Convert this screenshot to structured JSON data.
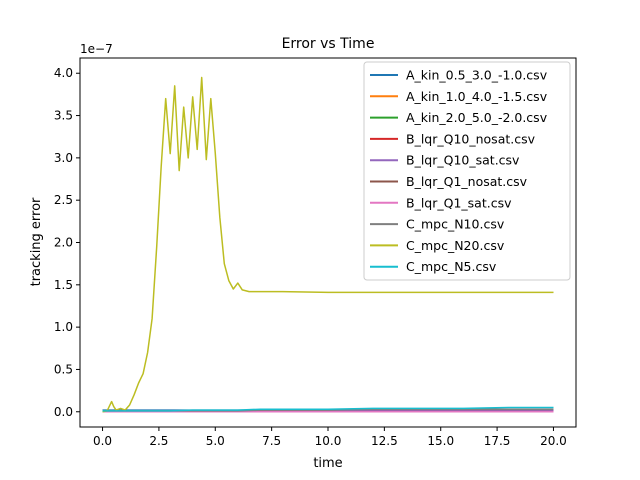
{
  "chart_data": {
    "type": "line",
    "title": "Error vs Time",
    "xlabel": "time",
    "ylabel": "tracking error",
    "y_scale_label": "1e−7",
    "xlim": [
      -1.0,
      21.0
    ],
    "ylim": [
      -0.18,
      4.18
    ],
    "x_ticks": [
      0.0,
      2.5,
      5.0,
      7.5,
      10.0,
      12.5,
      15.0,
      17.5,
      20.0
    ],
    "x_tick_labels": [
      "0.0",
      "2.5",
      "5.0",
      "7.5",
      "10.0",
      "12.5",
      "15.0",
      "17.5",
      "20.0"
    ],
    "y_ticks": [
      0.0,
      0.5,
      1.0,
      1.5,
      2.0,
      2.5,
      3.0,
      3.5,
      4.0
    ],
    "y_tick_labels": [
      "0.0",
      "0.5",
      "1.0",
      "1.5",
      "2.0",
      "2.5",
      "3.0",
      "3.5",
      "4.0"
    ],
    "grid": false,
    "legend_position": "top-right",
    "series": [
      {
        "name": "A_kin_0.5_3.0_-1.0.csv",
        "color": "#1f77b4",
        "x": [
          0,
          1,
          2,
          3,
          4,
          5,
          6,
          7,
          8,
          10,
          12,
          14,
          16,
          18,
          20
        ],
        "y": [
          0.02,
          0.02,
          0.02,
          0.02,
          0.02,
          0.02,
          0.02,
          0.02,
          0.02,
          0.02,
          0.02,
          0.02,
          0.02,
          0.02,
          0.02
        ]
      },
      {
        "name": "A_kin_1.0_4.0_-1.5.csv",
        "color": "#ff7f0e",
        "x": [
          0,
          1,
          2,
          3,
          4,
          5,
          6,
          7,
          8,
          10,
          12,
          14,
          16,
          18,
          20
        ],
        "y": [
          0.01,
          0.01,
          0.01,
          0.01,
          0.01,
          0.01,
          0.01,
          0.01,
          0.01,
          0.01,
          0.01,
          0.01,
          0.01,
          0.01,
          0.01
        ]
      },
      {
        "name": "A_kin_2.0_5.0_-2.0.csv",
        "color": "#2ca02c",
        "x": [
          0,
          1,
          2,
          3,
          4,
          5,
          6,
          7,
          8,
          10,
          12,
          14,
          16,
          18,
          20
        ],
        "y": [
          0.01,
          0.01,
          0.01,
          0.01,
          0.01,
          0.01,
          0.01,
          0.01,
          0.01,
          0.01,
          0.01,
          0.01,
          0.01,
          0.01,
          0.01
        ]
      },
      {
        "name": "B_lqr_Q10_nosat.csv",
        "color": "#d62728",
        "x": [
          0,
          1,
          2,
          3,
          4,
          5,
          6,
          7,
          8,
          10,
          12,
          14,
          16,
          18,
          20
        ],
        "y": [
          0.0,
          0.0,
          0.0,
          0.0,
          0.0,
          0.0,
          0.0,
          0.01,
          0.01,
          0.01,
          0.01,
          0.01,
          0.01,
          0.01,
          0.01
        ]
      },
      {
        "name": "B_lqr_Q10_sat.csv",
        "color": "#9467bd",
        "x": [
          0,
          1,
          2,
          3,
          4,
          5,
          6,
          7,
          8,
          10,
          12,
          14,
          16,
          18,
          20
        ],
        "y": [
          0.0,
          0.0,
          0.0,
          0.0,
          0.0,
          0.0,
          0.0,
          0.01,
          0.01,
          0.01,
          0.01,
          0.01,
          0.01,
          0.01,
          0.01
        ]
      },
      {
        "name": "B_lqr_Q1_nosat.csv",
        "color": "#8c564b",
        "x": [
          0,
          1,
          2,
          3,
          4,
          5,
          6,
          7,
          8,
          10,
          12,
          14,
          16,
          18,
          20
        ],
        "y": [
          0.0,
          0.0,
          0.0,
          0.0,
          0.0,
          0.0,
          0.0,
          0.0,
          0.0,
          0.0,
          0.0,
          0.0,
          0.0,
          0.0,
          0.0
        ]
      },
      {
        "name": "B_lqr_Q1_sat.csv",
        "color": "#e377c2",
        "x": [
          0,
          1,
          2,
          3,
          4,
          5,
          6,
          7,
          8,
          10,
          12,
          14,
          16,
          18,
          20
        ],
        "y": [
          0.0,
          0.0,
          0.0,
          0.0,
          0.0,
          0.0,
          0.0,
          0.0,
          0.0,
          0.0,
          0.0,
          0.0,
          0.0,
          0.0,
          0.0
        ]
      },
      {
        "name": "C_mpc_N10.csv",
        "color": "#7f7f7f",
        "x": [
          0,
          1,
          2,
          3,
          4,
          5,
          6,
          7,
          8,
          10,
          12,
          14,
          16,
          18,
          20
        ],
        "y": [
          0.01,
          0.01,
          0.01,
          0.01,
          0.01,
          0.01,
          0.01,
          0.02,
          0.02,
          0.02,
          0.03,
          0.03,
          0.03,
          0.03,
          0.03
        ]
      },
      {
        "name": "C_mpc_N20.csv",
        "color": "#bcbd22",
        "x": [
          0,
          0.2,
          0.4,
          0.5,
          0.6,
          0.8,
          1.0,
          1.2,
          1.4,
          1.6,
          1.8,
          2.0,
          2.2,
          2.4,
          2.6,
          2.8,
          3.0,
          3.2,
          3.4,
          3.6,
          3.8,
          4.0,
          4.2,
          4.4,
          4.6,
          4.8,
          5.0,
          5.2,
          5.4,
          5.6,
          5.8,
          6.0,
          6.2,
          6.5,
          7.0,
          8.0,
          10.0,
          12.0,
          14.0,
          16.0,
          18.0,
          20.0
        ],
        "y": [
          0.0,
          0.01,
          0.12,
          0.06,
          0.02,
          0.04,
          0.02,
          0.08,
          0.2,
          0.34,
          0.45,
          0.7,
          1.1,
          1.95,
          2.9,
          3.7,
          3.05,
          3.85,
          2.85,
          3.6,
          3.0,
          3.72,
          3.1,
          3.95,
          2.98,
          3.7,
          3.05,
          2.3,
          1.75,
          1.55,
          1.45,
          1.52,
          1.44,
          1.42,
          1.42,
          1.42,
          1.41,
          1.41,
          1.41,
          1.41,
          1.41,
          1.41
        ]
      },
      {
        "name": "C_mpc_N5.csv",
        "color": "#17becf",
        "x": [
          0,
          1,
          2,
          3,
          4,
          5,
          6,
          7,
          8,
          10,
          12,
          14,
          16,
          18,
          20
        ],
        "y": [
          0.01,
          0.01,
          0.01,
          0.01,
          0.02,
          0.02,
          0.02,
          0.03,
          0.03,
          0.03,
          0.04,
          0.04,
          0.04,
          0.05,
          0.05
        ]
      }
    ]
  }
}
